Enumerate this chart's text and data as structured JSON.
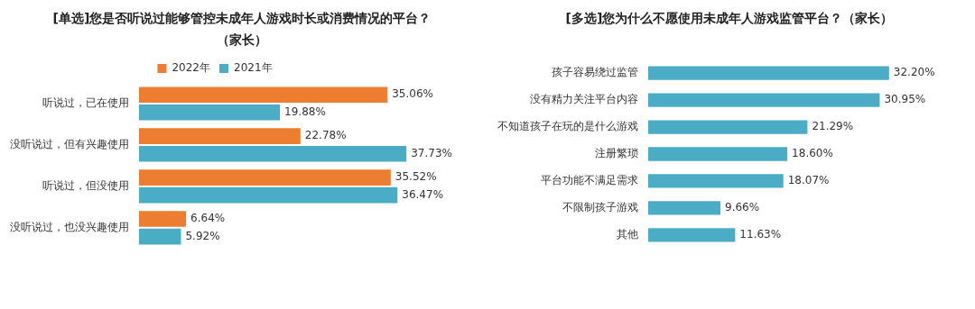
{
  "chart_data": [
    {
      "type": "bar",
      "orientation": "horizontal",
      "title": "[单选]您是否听说过能够管控未成年人游戏时长或消费情况的平台？（家长）",
      "categories": [
        "听说过，已在使用",
        "没听说过，但有兴趣使用",
        "听说过，但没使用",
        "没听说过，也没兴趣使用"
      ],
      "series": [
        {
          "name": "2022年",
          "color": "#ed7d31",
          "values": [
            35.06,
            22.78,
            35.52,
            6.64
          ],
          "value_labels": [
            "35.06%",
            "22.78%",
            "35.52%",
            "6.64%"
          ]
        },
        {
          "name": "2021年",
          "color": "#4bacc6",
          "values": [
            19.88,
            37.73,
            36.47,
            5.92
          ],
          "value_labels": [
            "19.88%",
            "37.73%",
            "36.47%",
            "5.92%"
          ]
        }
      ],
      "legend": "top"
    },
    {
      "type": "bar",
      "orientation": "horizontal",
      "title": "[多选]您为什么不愿使用未成年人游戏监管平台？（家长）",
      "categories": [
        "孩子容易绕过监管",
        "没有精力关注平台内容",
        "不知道孩子在玩的是什么游戏",
        "注册繁琐",
        "平台功能不满足需求",
        "不限制孩子游戏",
        "其他"
      ],
      "series": [
        {
          "color": "#4bacc6",
          "values": [
            32.2,
            30.95,
            21.29,
            18.6,
            18.07,
            9.66,
            11.63
          ],
          "value_labels": [
            "32.20%",
            "30.95%",
            "21.29%",
            "18.60%",
            "18.07%",
            "9.66%",
            "11.63%"
          ]
        }
      ],
      "legend": false
    }
  ]
}
